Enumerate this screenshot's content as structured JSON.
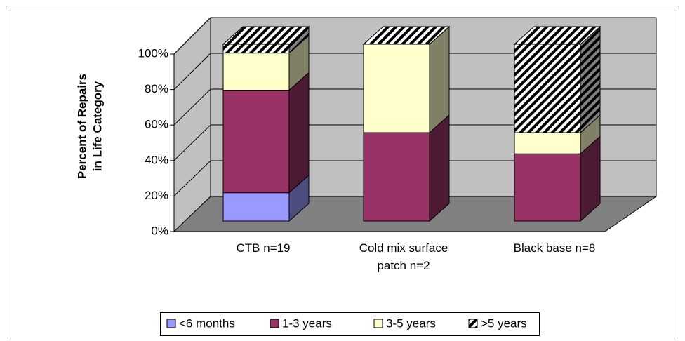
{
  "chart_data": {
    "type": "bar3d_stacked",
    "ylabel": [
      "Percent of Repairs",
      "in Life Category"
    ],
    "categories": [
      "CTB n=19",
      "Cold mix surface patch n=2",
      "Black base n=8"
    ],
    "series": [
      {
        "name": "<6 months",
        "color": "#9999ff",
        "side": "#4d4d80",
        "values": [
          16,
          0,
          0
        ]
      },
      {
        "name": "1-3 years",
        "color": "#993366",
        "side": "#4d1a33",
        "values": [
          58,
          50,
          38
        ]
      },
      {
        "name": "3-5 years",
        "color": "#ffffcc",
        "side": "#808066",
        "values": [
          21,
          50,
          12
        ]
      },
      {
        "name": ">5 years",
        "color": "hatch",
        "side": "hatch-dark",
        "values": [
          5,
          0,
          50
        ]
      }
    ],
    "ylim": [
      0,
      100
    ],
    "yticks": [
      {
        "value": 0,
        "label": "0%"
      },
      {
        "value": 20,
        "label": "20%"
      },
      {
        "value": 40,
        "label": "40%"
      },
      {
        "value": 60,
        "label": "60%"
      },
      {
        "value": 80,
        "label": "80%"
      },
      {
        "value": 100,
        "label": "100%"
      }
    ],
    "grid": true,
    "legend": "bottom"
  }
}
